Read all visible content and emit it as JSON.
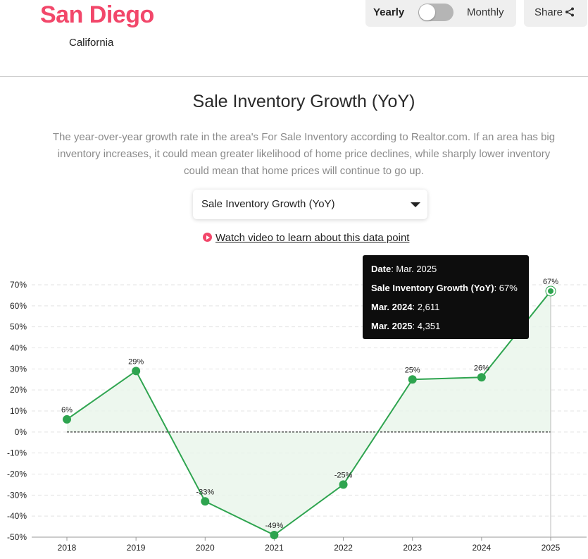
{
  "header": {
    "city": "San Diego",
    "state": "California",
    "toggle_left": "Yearly",
    "toggle_right": "Monthly",
    "toggle_state": "Yearly",
    "share_label": "Share"
  },
  "main": {
    "title": "Sale Inventory Growth (YoY)",
    "description": "The year-over-year growth rate in the area's For Sale Inventory according to Realtor.com. If an area has big inventory increases, it could mean greater likelihood of home price declines, while sharply lower inventory could mean that home prices will continue to go up.",
    "select_value": "Sale Inventory Growth (YoY)",
    "video_link": "Watch video to learn about this data point"
  },
  "tooltip": {
    "date_label": "Date",
    "date": "Mar. 2025",
    "metric_label": "Sale Inventory Growth (YoY)",
    "metric_value": "67%",
    "prev_label": "Mar. 2024",
    "prev_value": "2,611",
    "curr_label": "Mar. 2025",
    "curr_value": "4,351"
  },
  "chart_data": {
    "type": "line",
    "categories": [
      "2018",
      "2019",
      "2020",
      "2021",
      "2022",
      "2023",
      "2024",
      "2025"
    ],
    "values": [
      6,
      29,
      -33,
      -49,
      -25,
      25,
      26,
      67
    ],
    "data_labels": [
      "6%",
      "29%",
      "-33%",
      "-49%",
      "-25%",
      "25%",
      "26%",
      "67%"
    ],
    "ylim": [
      -50,
      70
    ],
    "yticks": [
      "70%",
      "60%",
      "50%",
      "40%",
      "30%",
      "20%",
      "10%",
      "0%",
      "-10%",
      "-20%",
      "-30%",
      "-40%",
      "-50%"
    ],
    "grid": true,
    "colors": {
      "line": "#2ea44f",
      "fill": "#e8f5ea",
      "zero_line": "#000000"
    }
  }
}
